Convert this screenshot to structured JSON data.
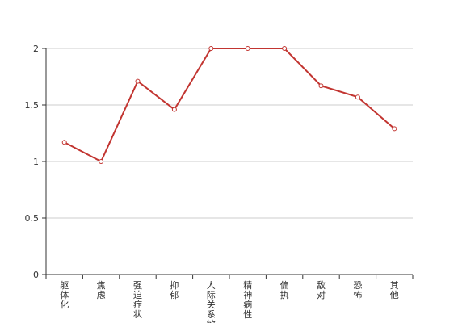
{
  "chart_data": {
    "type": "line",
    "categories": [
      "躯体化",
      "焦虑",
      "强迫症状",
      "抑郁",
      "人际关系敏感",
      "精神病性",
      "偏执",
      "敌对",
      "恐怖",
      "其他"
    ],
    "series": [
      {
        "color": "#c23531",
        "values": [
          1.17,
          1.0,
          1.71,
          1.46,
          2,
          2,
          2,
          1.67,
          1.57,
          1.29
        ]
      }
    ],
    "ylim": [
      0,
      2
    ],
    "yticks": [
      0,
      0.5,
      1,
      1.5,
      2
    ],
    "grid": true
  }
}
